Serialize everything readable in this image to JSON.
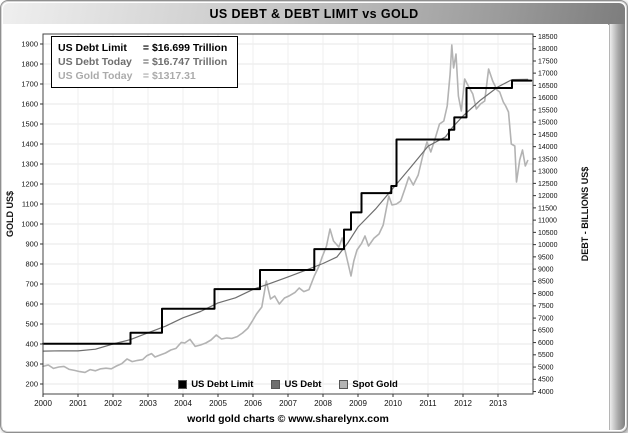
{
  "title": "US DEBT & DEBT LIMIT vs GOLD",
  "footer": "world gold charts © www.sharelynx.com",
  "info_box": {
    "lines": [
      {
        "label": "US Debt Limit",
        "value": "= $16.699 Trillion",
        "color": "#000000"
      },
      {
        "label": "US Debt Today",
        "value": "= $16.747 Trillion",
        "color": "#6e6e6e"
      },
      {
        "label": "US Gold Today",
        "value": "= $1317.31",
        "color": "#ababab"
      }
    ]
  },
  "legend": [
    {
      "label": "US Debt Limit",
      "color": "#000000"
    },
    {
      "label": "US Debt",
      "color": "#6e6e6e"
    },
    {
      "label": "Spot Gold",
      "color": "#b3b3b3"
    }
  ],
  "chart_data": {
    "type": "line",
    "title": "US DEBT & DEBT LIMIT vs GOLD",
    "ylabel_left": "GOLD US$",
    "ylabel_right": "DEBT - BILLIONS US$",
    "xlabel": "",
    "x_range": [
      2000,
      2014
    ],
    "gold_range": [
      150,
      1950
    ],
    "debt_range": [
      3900,
      18600
    ],
    "grid": true,
    "legend_position": "bottom-center",
    "x_ticks": [
      2000,
      2001,
      2002,
      2003,
      2004,
      2005,
      2006,
      2007,
      2008,
      2009,
      2010,
      2011,
      2012,
      2013
    ],
    "left_ticks": [
      200,
      300,
      400,
      500,
      600,
      700,
      800,
      900,
      1000,
      1100,
      1200,
      1300,
      1400,
      1500,
      1600,
      1700,
      1800,
      1900
    ],
    "right_ticks": [
      4000,
      4500,
      5000,
      5500,
      6000,
      6500,
      7000,
      7500,
      8000,
      8500,
      9000,
      9500,
      10000,
      10500,
      11000,
      11500,
      12000,
      12500,
      13000,
      13500,
      14000,
      14500,
      15000,
      15500,
      16000,
      16500,
      17000,
      17500,
      18000,
      18500
    ],
    "series": [
      {
        "name": "Spot Gold",
        "axis": "left",
        "style": "line",
        "color": "#b3b3b3",
        "width": 1.6,
        "points": [
          [
            2000.0,
            288
          ],
          [
            2000.15,
            295
          ],
          [
            2000.3,
            278
          ],
          [
            2000.45,
            285
          ],
          [
            2000.6,
            288
          ],
          [
            2000.75,
            273
          ],
          [
            2000.9,
            268
          ],
          [
            2001.05,
            262
          ],
          [
            2001.2,
            258
          ],
          [
            2001.35,
            272
          ],
          [
            2001.5,
            266
          ],
          [
            2001.65,
            276
          ],
          [
            2001.8,
            279
          ],
          [
            2001.95,
            276
          ],
          [
            2002.1,
            290
          ],
          [
            2002.25,
            302
          ],
          [
            2002.4,
            325
          ],
          [
            2002.55,
            312
          ],
          [
            2002.7,
            318
          ],
          [
            2002.85,
            322
          ],
          [
            2002.97,
            342
          ],
          [
            2003.1,
            352
          ],
          [
            2003.2,
            335
          ],
          [
            2003.35,
            345
          ],
          [
            2003.5,
            355
          ],
          [
            2003.65,
            370
          ],
          [
            2003.8,
            378
          ],
          [
            2003.95,
            408
          ],
          [
            2004.05,
            405
          ],
          [
            2004.2,
            423
          ],
          [
            2004.35,
            388
          ],
          [
            2004.5,
            395
          ],
          [
            2004.65,
            405
          ],
          [
            2004.8,
            420
          ],
          [
            2004.95,
            445
          ],
          [
            2005.1,
            425
          ],
          [
            2005.25,
            430
          ],
          [
            2005.4,
            428
          ],
          [
            2005.55,
            437
          ],
          [
            2005.7,
            455
          ],
          [
            2005.85,
            478
          ],
          [
            2005.97,
            512
          ],
          [
            2006.1,
            550
          ],
          [
            2006.25,
            585
          ],
          [
            2006.38,
            715
          ],
          [
            2006.5,
            625
          ],
          [
            2006.62,
            640
          ],
          [
            2006.75,
            600
          ],
          [
            2006.9,
            630
          ],
          [
            2007.05,
            642
          ],
          [
            2007.2,
            658
          ],
          [
            2007.32,
            680
          ],
          [
            2007.45,
            662
          ],
          [
            2007.6,
            672
          ],
          [
            2007.75,
            740
          ],
          [
            2007.9,
            795
          ],
          [
            2007.97,
            833
          ],
          [
            2008.1,
            890
          ],
          [
            2008.2,
            975
          ],
          [
            2008.3,
            915
          ],
          [
            2008.45,
            885
          ],
          [
            2008.55,
            930
          ],
          [
            2008.68,
            830
          ],
          [
            2008.8,
            740
          ],
          [
            2008.88,
            815
          ],
          [
            2008.97,
            870
          ],
          [
            2009.1,
            902
          ],
          [
            2009.2,
            940
          ],
          [
            2009.3,
            890
          ],
          [
            2009.45,
            928
          ],
          [
            2009.6,
            950
          ],
          [
            2009.72,
            995
          ],
          [
            2009.88,
            1140
          ],
          [
            2009.97,
            1095
          ],
          [
            2010.1,
            1100
          ],
          [
            2010.22,
            1115
          ],
          [
            2010.35,
            1180
          ],
          [
            2010.45,
            1235
          ],
          [
            2010.58,
            1195
          ],
          [
            2010.72,
            1245
          ],
          [
            2010.85,
            1340
          ],
          [
            2010.97,
            1410
          ],
          [
            2011.08,
            1360
          ],
          [
            2011.2,
            1425
          ],
          [
            2011.33,
            1500
          ],
          [
            2011.45,
            1515
          ],
          [
            2011.55,
            1590
          ],
          [
            2011.63,
            1750
          ],
          [
            2011.68,
            1895
          ],
          [
            2011.73,
            1780
          ],
          [
            2011.8,
            1850
          ],
          [
            2011.87,
            1640
          ],
          [
            2011.95,
            1565
          ],
          [
            2012.05,
            1725
          ],
          [
            2012.15,
            1690
          ],
          [
            2012.28,
            1650
          ],
          [
            2012.38,
            1575
          ],
          [
            2012.5,
            1600
          ],
          [
            2012.62,
            1615
          ],
          [
            2012.73,
            1775
          ],
          [
            2012.85,
            1715
          ],
          [
            2012.97,
            1670
          ],
          [
            2013.05,
            1660
          ],
          [
            2013.15,
            1610
          ],
          [
            2013.22,
            1590
          ],
          [
            2013.3,
            1560
          ],
          [
            2013.38,
            1400
          ],
          [
            2013.48,
            1390
          ],
          [
            2013.53,
            1210
          ],
          [
            2013.62,
            1320
          ],
          [
            2013.7,
            1370
          ],
          [
            2013.78,
            1290
          ],
          [
            2013.85,
            1317
          ]
        ]
      },
      {
        "name": "US Debt",
        "axis": "right",
        "style": "line",
        "color": "#6e6e6e",
        "width": 1.2,
        "points": [
          [
            2000.0,
            5650
          ],
          [
            2000.5,
            5665
          ],
          [
            2001.0,
            5660
          ],
          [
            2001.5,
            5730
          ],
          [
            2002.0,
            5940
          ],
          [
            2002.5,
            6120
          ],
          [
            2003.0,
            6400
          ],
          [
            2003.5,
            6670
          ],
          [
            2004.0,
            7010
          ],
          [
            2004.5,
            7270
          ],
          [
            2005.0,
            7620
          ],
          [
            2005.5,
            7830
          ],
          [
            2006.0,
            8170
          ],
          [
            2006.5,
            8420
          ],
          [
            2007.0,
            8680
          ],
          [
            2007.5,
            8950
          ],
          [
            2008.0,
            9230
          ],
          [
            2008.4,
            9500
          ],
          [
            2008.7,
            10050
          ],
          [
            2009.0,
            10720
          ],
          [
            2009.5,
            11450
          ],
          [
            2010.0,
            12300
          ],
          [
            2010.5,
            13150
          ],
          [
            2011.0,
            14020
          ],
          [
            2011.5,
            14400
          ],
          [
            2011.7,
            14790
          ],
          [
            2012.0,
            15250
          ],
          [
            2012.5,
            15900
          ],
          [
            2013.0,
            16440
          ],
          [
            2013.4,
            16740
          ],
          [
            2013.85,
            16747
          ]
        ]
      },
      {
        "name": "US Debt Limit",
        "axis": "right",
        "style": "step",
        "color": "#000000",
        "width": 2,
        "points": [
          [
            2000.0,
            5950
          ],
          [
            2002.5,
            6400
          ],
          [
            2003.4,
            7384
          ],
          [
            2004.9,
            8184
          ],
          [
            2006.2,
            8965
          ],
          [
            2007.75,
            9815
          ],
          [
            2008.6,
            10615
          ],
          [
            2008.8,
            11315
          ],
          [
            2009.1,
            12104
          ],
          [
            2009.95,
            12394
          ],
          [
            2010.1,
            14294
          ],
          [
            2011.6,
            14694
          ],
          [
            2011.75,
            15194
          ],
          [
            2012.1,
            16394
          ],
          [
            2013.4,
            16699
          ],
          [
            2013.95,
            16699
          ]
        ]
      }
    ]
  }
}
